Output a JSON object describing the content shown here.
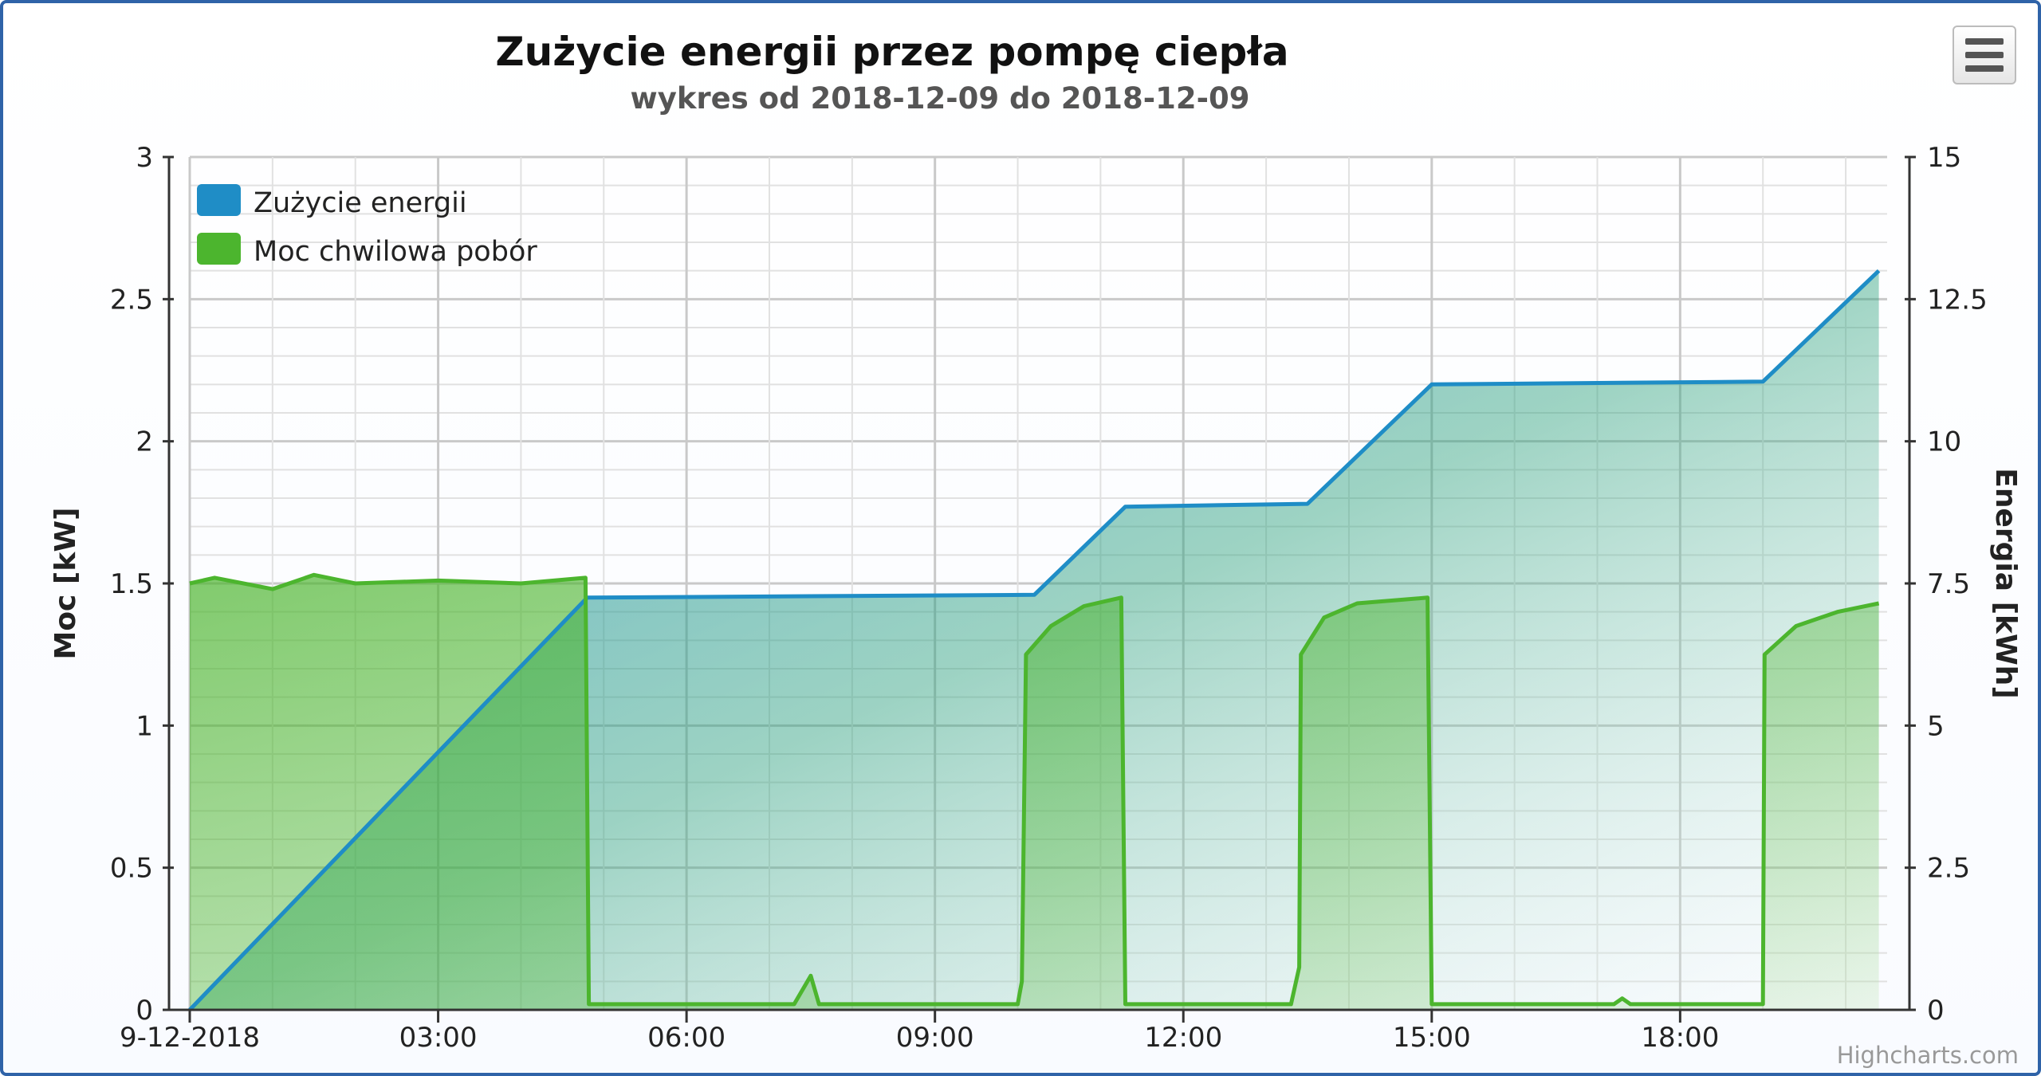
{
  "chart_data": {
    "type": "line",
    "title": "Zużycie energii przez pompę ciepła",
    "subtitle": "wykres od 2018-12-09 do 2018-12-09",
    "xlabel": "",
    "x_tick_labels": [
      "9-12-2018",
      "03:00",
      "06:00",
      "09:00",
      "12:00",
      "15:00",
      "18:00"
    ],
    "x_range_hours": [
      0,
      20.5
    ],
    "y_left": {
      "title": "Moc [kW]",
      "range": [
        0,
        3
      ],
      "tick_labels": [
        "0",
        "0.5",
        "1",
        "1.5",
        "2",
        "2.5",
        "3"
      ]
    },
    "y_right": {
      "title": "Energia [kWh]",
      "range": [
        0,
        15
      ],
      "tick_labels": [
        "0",
        "2.5",
        "5",
        "7.5",
        "10",
        "12.5",
        "15"
      ]
    },
    "grid": true,
    "legend_position": "top-left",
    "series": [
      {
        "name": "Zużycie energii",
        "axis": "right",
        "color": "#1f8dc6",
        "points": [
          [
            0,
            0
          ],
          [
            4.8,
            7.25
          ],
          [
            10.2,
            7.3
          ],
          [
            11.3,
            8.85
          ],
          [
            13.5,
            8.9
          ],
          [
            15,
            11
          ],
          [
            19,
            11.05
          ],
          [
            20.4,
            13
          ]
        ]
      },
      {
        "name": "Moc chwilowa pobór",
        "axis": "left",
        "color": "#4cb52e",
        "points": [
          [
            0,
            1.5
          ],
          [
            0.3,
            1.52
          ],
          [
            1,
            1.48
          ],
          [
            1.5,
            1.53
          ],
          [
            2,
            1.5
          ],
          [
            3,
            1.51
          ],
          [
            4,
            1.5
          ],
          [
            4.78,
            1.52
          ],
          [
            4.82,
            0.02
          ],
          [
            7.3,
            0.02
          ],
          [
            7.5,
            0.12
          ],
          [
            7.6,
            0.02
          ],
          [
            10,
            0.02
          ],
          [
            10.05,
            0.1
          ],
          [
            10.1,
            1.25
          ],
          [
            10.4,
            1.35
          ],
          [
            10.8,
            1.42
          ],
          [
            11.25,
            1.45
          ],
          [
            11.3,
            0.02
          ],
          [
            13.3,
            0.02
          ],
          [
            13.4,
            0.15
          ],
          [
            13.42,
            1.25
          ],
          [
            13.7,
            1.38
          ],
          [
            14.1,
            1.43
          ],
          [
            14.95,
            1.45
          ],
          [
            15,
            0.02
          ],
          [
            17.2,
            0.02
          ],
          [
            17.3,
            0.04
          ],
          [
            17.4,
            0.02
          ],
          [
            19,
            0.02
          ],
          [
            19.02,
            1.25
          ],
          [
            19.4,
            1.35
          ],
          [
            19.9,
            1.4
          ],
          [
            20.4,
            1.43
          ]
        ]
      }
    ]
  },
  "credits": "Highcharts.com",
  "menu": {
    "icon": "hamburger-menu-icon"
  }
}
